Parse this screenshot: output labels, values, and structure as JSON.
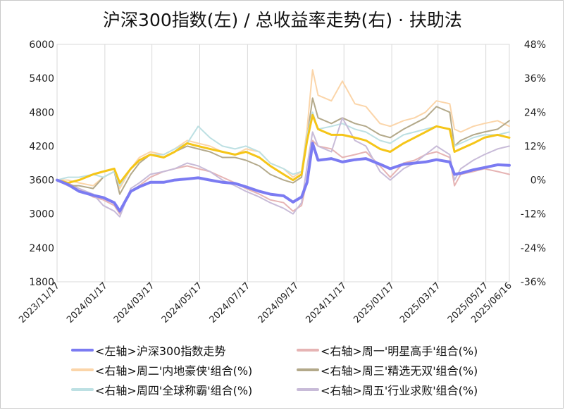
{
  "title": "沪深300指数(左)  /  总收益率走势(右) · 扶助法",
  "chart_data": {
    "type": "line",
    "title": "沪深300指数(左)  /  总收益率走势(右) · 扶助法",
    "x_ticks": [
      "2023/11/17",
      "2024/01/17",
      "2024/03/17",
      "2024/05/17",
      "2024/07/17",
      "2024/09/17",
      "2024/11/17",
      "2025/01/17",
      "2025/03/17",
      "2025/05/17",
      "2025/06/16"
    ],
    "x_ticks_highlight_color": "#ff0000",
    "left_axis": {
      "ticks": [
        "1800",
        "2400",
        "3000",
        "3600",
        "4200",
        "4800",
        "5400",
        "6000"
      ],
      "ylim": [
        1800,
        6000
      ]
    },
    "right_axis": {
      "ticks": [
        "48%",
        "36%",
        "24%",
        "12%",
        "0%",
        "-12%",
        "-24%",
        "-36%"
      ],
      "ylim": [
        -36,
        48
      ],
      "negative_color": "#00c000"
    },
    "grid": "vertical",
    "legend_position": "bottom",
    "x_dates": [
      "2023-11-17",
      "2023-12-01",
      "2023-12-15",
      "2024-01-02",
      "2024-01-15",
      "2024-01-29",
      "2024-02-05",
      "2024-02-19",
      "2024-03-01",
      "2024-03-15",
      "2024-04-01",
      "2024-04-15",
      "2024-05-01",
      "2024-05-15",
      "2024-05-30",
      "2024-06-15",
      "2024-07-01",
      "2024-07-15",
      "2024-08-01",
      "2024-08-15",
      "2024-09-01",
      "2024-09-13",
      "2024-09-24",
      "2024-10-01",
      "2024-10-08",
      "2024-10-15",
      "2024-11-01",
      "2024-11-15",
      "2024-12-01",
      "2024-12-15",
      "2025-01-02",
      "2025-01-15",
      "2025-02-01",
      "2025-02-15",
      "2025-03-01",
      "2025-03-15",
      "2025-04-01",
      "2025-04-07",
      "2025-04-15",
      "2025-05-01",
      "2025-05-15",
      "2025-06-01",
      "2025-06-16"
    ],
    "series": [
      {
        "name": "<左轴>沪深300指数走势",
        "axis": "left",
        "color": "#7b7bf2",
        "width": 4,
        "values": [
          3600,
          3520,
          3400,
          3330,
          3290,
          3200,
          3050,
          3400,
          3480,
          3560,
          3560,
          3600,
          3620,
          3640,
          3600,
          3560,
          3540,
          3480,
          3400,
          3350,
          3320,
          3210,
          3300,
          3560,
          4250,
          3950,
          3980,
          3920,
          3960,
          3980,
          3880,
          3800,
          3880,
          3900,
          3920,
          3960,
          3920,
          3700,
          3720,
          3780,
          3820,
          3870,
          3860
        ]
      },
      {
        "name": "<右轴>周一'明星高手'组合(%)",
        "axis": "right",
        "color": "#e6b4b4",
        "width": 2,
        "values": [
          0,
          -1,
          -3,
          -6,
          -7,
          -9,
          -12,
          -4,
          -2,
          1,
          3,
          4,
          5,
          4,
          3,
          1,
          -1,
          -3,
          -5,
          -7,
          -8,
          -11,
          -9,
          0,
          14,
          12,
          11,
          8,
          9,
          10,
          5,
          1,
          6,
          7,
          9,
          10,
          8,
          -2,
          2,
          3,
          4,
          3,
          2
        ]
      },
      {
        "name": "<右轴>周二'内地豪侠'组合(%)",
        "axis": "right",
        "color": "#fbd5a9",
        "width": 2,
        "values": [
          0,
          0,
          -1,
          -2,
          1,
          3,
          -3,
          4,
          8,
          10,
          9,
          11,
          14,
          13,
          12,
          10,
          9,
          11,
          10,
          6,
          4,
          1,
          3,
          18,
          39,
          30,
          28,
          35,
          27,
          26,
          20,
          19,
          21,
          22,
          24,
          28,
          27,
          18,
          17,
          19,
          20,
          21,
          19
        ]
      },
      {
        "name": "<右轴>周三'精选无双'组合(%)",
        "axis": "right",
        "color": "#b3a98a",
        "width": 2,
        "values": [
          0,
          -2,
          -2,
          -3,
          1,
          3,
          -5,
          2,
          6,
          9,
          8,
          10,
          12,
          11,
          10,
          8,
          8,
          7,
          5,
          2,
          0,
          -1,
          1,
          15,
          29,
          22,
          20,
          22,
          20,
          19,
          16,
          15,
          18,
          20,
          22,
          26,
          24,
          12,
          14,
          16,
          17,
          18,
          21
        ]
      },
      {
        "name": "<右轴>周四'全球称霸'组合(%)",
        "axis": "right",
        "color": "#bde0e3",
        "width": 2,
        "values": [
          0,
          1,
          1,
          2,
          1,
          3,
          -2,
          4,
          7,
          9,
          9,
          11,
          13,
          19,
          15,
          12,
          11,
          12,
          10,
          6,
          4,
          2,
          3,
          16,
          24,
          18,
          19,
          20,
          18,
          17,
          14,
          13,
          16,
          17,
          18,
          19,
          18,
          12,
          13,
          15,
          16,
          16,
          17
        ]
      },
      {
        "name": "<右轴>周五'行业求败'组合(%)",
        "axis": "right",
        "color": "#c8bbd8",
        "width": 2,
        "values": [
          0,
          -2,
          -3,
          -5,
          -9,
          -11,
          -13,
          -3,
          -1,
          2,
          3,
          4,
          6,
          5,
          3,
          0,
          -2,
          -4,
          -6,
          -8,
          -10,
          -12,
          -8,
          5,
          17,
          12,
          10,
          22,
          14,
          12,
          3,
          0,
          4,
          6,
          9,
          12,
          9,
          0,
          4,
          7,
          9,
          11,
          12
        ]
      },
      {
        "name": "",
        "axis": "right",
        "color": "#f5c518",
        "width": 3,
        "values": [
          0,
          -1,
          0,
          2,
          3,
          4,
          -1,
          4,
          7,
          9,
          8,
          10,
          13,
          12,
          11,
          10,
          9,
          10,
          8,
          5,
          2,
          0,
          2,
          14,
          23,
          18,
          16,
          16,
          15,
          14,
          11,
          10,
          13,
          15,
          17,
          19,
          18,
          10,
          11,
          13,
          15,
          16,
          15
        ]
      }
    ]
  },
  "legend": [
    {
      "label": "<左轴>沪深300指数走势",
      "color": "#7b7bf2"
    },
    {
      "label": "<右轴>周一'明星高手'组合(%)",
      "color": "#e6b4b4"
    },
    {
      "label": "<右轴>周二'内地豪侠'组合(%)",
      "color": "#fbd5a9"
    },
    {
      "label": "<右轴>周三'精选无双'组合(%)",
      "color": "#b3a98a"
    },
    {
      "label": "<右轴>周四'全球称霸'组合(%)",
      "color": "#bde0e3"
    },
    {
      "label": "<右轴>周五'行业求败'组合(%)",
      "color": "#c8bbd8"
    }
  ]
}
